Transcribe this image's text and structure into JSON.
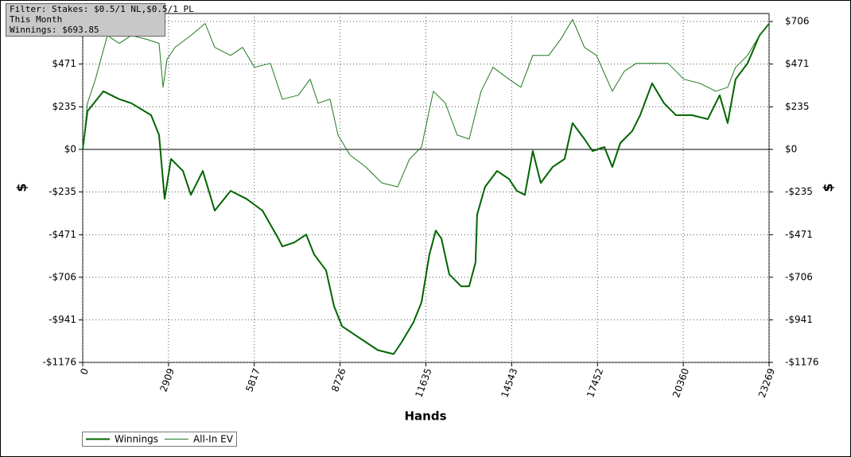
{
  "chart_data": {
    "type": "line",
    "annotation": [
      "Filter: Stakes: $0.5/1 NL,$0.5/1 PL",
      "This Month",
      "Winnings: $693.85"
    ],
    "xlabel": "Hands",
    "ylabel": "$",
    "y2label": "$",
    "xlim": [
      0,
      23269
    ],
    "xticks": [
      0,
      2909,
      5817,
      8726,
      11635,
      14543,
      17452,
      20360,
      23269
    ],
    "ylim": [
      -1176,
      750
    ],
    "yticks": [
      {
        "value": -1176,
        "label": "-$1176"
      },
      {
        "value": -941,
        "label": "-$941"
      },
      {
        "value": -706,
        "label": "-$706"
      },
      {
        "value": -471,
        "label": "-$471"
      },
      {
        "value": -235,
        "label": "-$235"
      },
      {
        "value": 0,
        "label": "$0"
      },
      {
        "value": 235,
        "label": "$235"
      },
      {
        "value": 471,
        "label": "$471"
      },
      {
        "value": 706,
        "label": "$706"
      }
    ],
    "grid": true,
    "legend": "bottom-left",
    "series": [
      {
        "name": "Winnings",
        "color": "#006400",
        "width": 2,
        "x": [
          0,
          162,
          701,
          1240,
          1645,
          2319,
          2588,
          2777,
          2993,
          3397,
          3666,
          4071,
          4475,
          5014,
          5553,
          6093,
          6632,
          6767,
          7171,
          7576,
          7845,
          8250,
          8519,
          8789,
          9193,
          9598,
          10002,
          10541,
          10811,
          11215,
          11485,
          11754,
          11970,
          12159,
          12428,
          12833,
          13102,
          13318,
          13372,
          13641,
          14046,
          14450,
          14720,
          14990,
          15259,
          15529,
          15933,
          16337,
          16607,
          17011,
          17281,
          17685,
          17955,
          18224,
          18629,
          18898,
          19302,
          19707,
          20111,
          20650,
          21190,
          21594,
          21864,
          22133,
          22539,
          22943,
          23269
        ],
        "values": [
          0,
          211,
          321,
          277,
          255,
          189,
          79,
          -273,
          -53,
          -119,
          -251,
          -119,
          -338,
          -229,
          -273,
          -338,
          -492,
          -536,
          -514,
          -470,
          -580,
          -668,
          -866,
          -976,
          -1020,
          -1064,
          -1108,
          -1130,
          -1064,
          -954,
          -844,
          -580,
          -448,
          -492,
          -690,
          -756,
          -756,
          -624,
          -360,
          -207,
          -119,
          -163,
          -229,
          -251,
          -9,
          -185,
          -97,
          -53,
          145,
          57,
          -9,
          13,
          -97,
          35,
          101,
          189,
          365,
          255,
          189,
          189,
          167,
          299,
          145,
          387,
          475,
          629,
          694
        ]
      },
      {
        "name": "All-In EV",
        "color": "#1f7a1f",
        "width": 1,
        "x": [
          0,
          162,
          431,
          836,
          1240,
          1645,
          2184,
          2588,
          2723,
          2858,
          3127,
          3666,
          4152,
          4475,
          5014,
          5419,
          5823,
          6363,
          6767,
          7306,
          7711,
          7980,
          8385,
          8654,
          9059,
          9598,
          10137,
          10676,
          11081,
          11485,
          11889,
          12294,
          12698,
          13102,
          13507,
          13911,
          14450,
          14855,
          15259,
          15798,
          16203,
          16607,
          17011,
          17416,
          17955,
          18359,
          18764,
          19302,
          19841,
          20380,
          20920,
          21459,
          21864,
          22133,
          22539,
          22943,
          23269
        ],
        "values": [
          0,
          255,
          387,
          629,
          585,
          629,
          607,
          585,
          343,
          497,
          563,
          629,
          695,
          563,
          519,
          563,
          453,
          475,
          277,
          299,
          387,
          255,
          277,
          79,
          -31,
          -97,
          -185,
          -207,
          -53,
          13,
          321,
          255,
          79,
          57,
          321,
          453,
          387,
          343,
          519,
          519,
          607,
          717,
          563,
          519,
          321,
          431,
          475,
          475,
          475,
          387,
          365,
          321,
          343,
          453,
          519,
          629,
          695
        ]
      }
    ]
  }
}
